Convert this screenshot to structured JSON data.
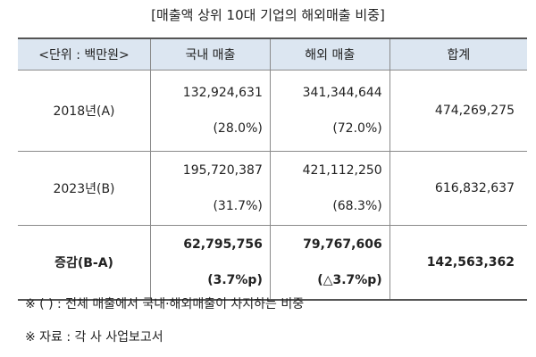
{
  "title": "[매출액 상위 10대 기업의 해외매출 비중]",
  "table": {
    "header": [
      "<단위 : 백만원>",
      "국내 매출",
      "해외 매출",
      "합계"
    ],
    "rows": [
      [
        "2018년(A)",
        "132,924,631",
        "(28.0%)",
        "341,344,644",
        "(72.0%)",
        "474,269,275"
      ],
      [
        "2023년(B)",
        "195,720,387",
        "(31.7%)",
        "421,112,250",
        "(68.3%)",
        "616,832,637"
      ],
      [
        "증감(B-A)",
        "62,795,756",
        "(3.7%p)",
        "79,767,606",
        "(△3.7%p)",
        "142,563,362"
      ]
    ]
  },
  "notes": [
    "※ (    ) : 전체 매출에서 국내·해외매출이 차지하는 비중",
    "※ 자료 : 각 사 사업보고서"
  ]
}
